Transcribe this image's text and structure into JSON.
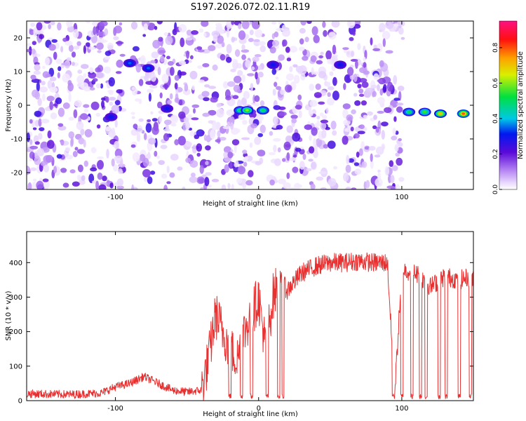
{
  "title": "S197.2026.072.02.11.R19",
  "chart_data": [
    {
      "type": "heatmap",
      "xlabel": "Height of straight line (km)",
      "ylabel": "Frequency (Hz)",
      "xlim": [
        -162,
        150
      ],
      "ylim": [
        -25,
        25
      ],
      "xticks": [
        -100,
        0,
        100
      ],
      "yticks": [
        -20,
        -10,
        0,
        10,
        20
      ],
      "colorbar": {
        "label": "Normalized spectral amplitude",
        "range": [
          0,
          0.95
        ],
        "ticks": [
          0,
          0.2,
          0.4,
          0.6,
          0.8
        ],
        "tick_labels": [
          "0.0",
          "0.2",
          "0.4",
          "0.6",
          "0.8"
        ]
      },
      "gaps_km": [
        [
          -95,
          -88
        ],
        [
          3,
          8
        ],
        [
          54,
          60
        ],
        [
          101,
          150
        ]
      ],
      "features": [
        {
          "x": -103,
          "y": -3.5,
          "amp": 0.3
        },
        {
          "x": -90,
          "y": 12.5,
          "amp": 0.35
        },
        {
          "x": -77,
          "y": 11,
          "amp": 0.35
        },
        {
          "x": -64,
          "y": -1,
          "amp": 0.3
        },
        {
          "x": -13,
          "y": -1.5,
          "amp": 0.5
        },
        {
          "x": -8,
          "y": -1.5,
          "amp": 0.6
        },
        {
          "x": 3,
          "y": -1.5,
          "amp": 0.5
        },
        {
          "x": 10,
          "y": 12,
          "amp": 0.3
        },
        {
          "x": 57,
          "y": 12,
          "amp": 0.3
        },
        {
          "x": 105,
          "y": -2,
          "amp": 0.5
        },
        {
          "x": 116,
          "y": -2,
          "amp": 0.55
        },
        {
          "x": 127,
          "y": -2.5,
          "amp": 0.7
        },
        {
          "x": 143,
          "y": -2.5,
          "amp": 0.8
        }
      ]
    },
    {
      "type": "line",
      "xlabel": "Height of straight line (km)",
      "ylabel": "SNR (10 * v/v)",
      "xlim": [
        -162,
        150
      ],
      "ylim": [
        0,
        490
      ],
      "xticks": [
        -100,
        0,
        100
      ],
      "yticks": [
        0,
        100,
        200,
        300,
        400
      ],
      "color": "#e83030",
      "series": [
        {
          "name": "SNR",
          "x": [
            -162,
            -130,
            -110,
            -100,
            -90,
            -80,
            -70,
            -60,
            -50,
            -40,
            -35,
            -30,
            -25,
            -20,
            -15,
            -10,
            -5,
            0,
            5,
            10,
            15,
            20,
            30,
            40,
            50,
            60,
            70,
            80,
            90,
            95,
            100,
            110,
            120,
            130,
            140,
            150
          ],
          "values": [
            20,
            18,
            22,
            40,
            50,
            70,
            50,
            30,
            25,
            30,
            120,
            250,
            200,
            150,
            120,
            200,
            250,
            300,
            150,
            300,
            350,
            320,
            370,
            390,
            400,
            400,
            405,
            400,
            400,
            15,
            380,
            370,
            330,
            360,
            350,
            360
          ]
        }
      ],
      "dropouts_km": [
        -20,
        -12,
        -5,
        6,
        14,
        17,
        94,
        100,
        107,
        113,
        117,
        126,
        131,
        140,
        148
      ]
    }
  ]
}
